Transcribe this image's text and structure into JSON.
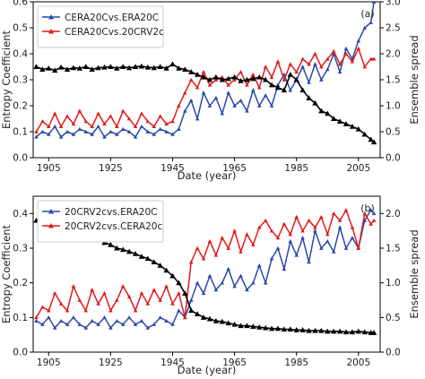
{
  "colors": {
    "blue": "#2b4aa8",
    "red": "#e01b1b",
    "black": "#000000"
  },
  "chart_data": [
    {
      "type": "line",
      "panel_label": "(a)",
      "xlabel": "Date (year)",
      "ylabel": "Entropy Coefficient",
      "y2label": "Ensemble spread",
      "xlim": [
        1900,
        2012
      ],
      "ylim": [
        0,
        0.6
      ],
      "y2lim": [
        0,
        3.0
      ],
      "xticks": [
        "1905",
        "1925",
        "1945",
        "1965",
        "1985",
        "2005"
      ],
      "yticks": [
        "0.0",
        "0.1",
        "0.2",
        "0.3",
        "0.4",
        "0.5",
        "0.6"
      ],
      "y2ticks": [
        "0.0",
        "0.5",
        "1.0",
        "1.5",
        "2.0",
        "2.5",
        "3.0"
      ],
      "legend_position": "upper-left",
      "x": [
        1901,
        1903,
        1905,
        1907,
        1909,
        1911,
        1913,
        1915,
        1917,
        1919,
        1921,
        1923,
        1925,
        1927,
        1929,
        1931,
        1933,
        1935,
        1937,
        1939,
        1941,
        1943,
        1945,
        1947,
        1949,
        1951,
        1953,
        1955,
        1957,
        1959,
        1961,
        1963,
        1965,
        1967,
        1969,
        1971,
        1973,
        1975,
        1977,
        1979,
        1981,
        1983,
        1985,
        1987,
        1989,
        1991,
        1993,
        1995,
        1997,
        1999,
        2001,
        2003,
        2005,
        2007,
        2009,
        2010
      ],
      "series": [
        {
          "name": "CERA20Cvs.ERA20C",
          "color": "blue",
          "axis": "left",
          "values": [
            0.08,
            0.1,
            0.09,
            0.12,
            0.08,
            0.1,
            0.09,
            0.11,
            0.1,
            0.09,
            0.12,
            0.08,
            0.1,
            0.09,
            0.11,
            0.1,
            0.08,
            0.12,
            0.1,
            0.09,
            0.11,
            0.1,
            0.09,
            0.11,
            0.18,
            0.22,
            0.15,
            0.25,
            0.2,
            0.23,
            0.17,
            0.25,
            0.2,
            0.22,
            0.18,
            0.26,
            0.2,
            0.24,
            0.2,
            0.28,
            0.32,
            0.26,
            0.3,
            0.35,
            0.29,
            0.36,
            0.3,
            0.34,
            0.4,
            0.33,
            0.42,
            0.38,
            0.45,
            0.5,
            0.52,
            0.6
          ]
        },
        {
          "name": "CERA20Cvs.20CRV2c",
          "color": "red",
          "axis": "left",
          "values": [
            0.1,
            0.14,
            0.12,
            0.17,
            0.12,
            0.16,
            0.13,
            0.18,
            0.14,
            0.12,
            0.17,
            0.13,
            0.16,
            0.12,
            0.18,
            0.15,
            0.12,
            0.17,
            0.14,
            0.12,
            0.16,
            0.13,
            0.14,
            0.2,
            0.25,
            0.3,
            0.27,
            0.33,
            0.28,
            0.3,
            0.31,
            0.28,
            0.3,
            0.33,
            0.28,
            0.32,
            0.27,
            0.35,
            0.31,
            0.37,
            0.3,
            0.36,
            0.33,
            0.38,
            0.36,
            0.4,
            0.35,
            0.38,
            0.41,
            0.36,
            0.4,
            0.37,
            0.42,
            0.35,
            0.38,
            0.38
          ]
        },
        {
          "name": "",
          "color": "black",
          "axis": "right",
          "values": [
            1.75,
            1.7,
            1.72,
            1.68,
            1.74,
            1.7,
            1.73,
            1.72,
            1.75,
            1.7,
            1.73,
            1.74,
            1.75,
            1.72,
            1.75,
            1.73,
            1.75,
            1.76,
            1.74,
            1.73,
            1.75,
            1.72,
            1.8,
            1.72,
            1.7,
            1.65,
            1.6,
            1.55,
            1.5,
            1.55,
            1.5,
            1.52,
            1.55,
            1.48,
            1.5,
            1.52,
            1.55,
            1.5,
            1.4,
            1.35,
            1.3,
            1.6,
            1.5,
            1.3,
            1.15,
            1.05,
            0.9,
            0.85,
            0.75,
            0.7,
            0.65,
            0.6,
            0.55,
            0.45,
            0.35,
            0.3
          ]
        }
      ]
    },
    {
      "type": "line",
      "panel_label": "(b)",
      "xlabel": "Date (year)",
      "ylabel": "Entropy Coefficient",
      "y2label": "Ensemble spread",
      "xlim": [
        1900,
        2012
      ],
      "ylim": [
        0,
        0.45
      ],
      "y2lim": [
        0,
        2.25
      ],
      "xticks": [
        "1905",
        "1925",
        "1945",
        "1965",
        "1985",
        "2005"
      ],
      "yticks": [
        "0.0",
        "0.1",
        "0.2",
        "0.3",
        "0.4"
      ],
      "y2ticks": [
        "0.0",
        "0.5",
        "1.0",
        "1.5",
        "2.0"
      ],
      "legend_position": "upper-left",
      "x": [
        1901,
        1903,
        1905,
        1907,
        1909,
        1911,
        1913,
        1915,
        1917,
        1919,
        1921,
        1923,
        1925,
        1927,
        1929,
        1931,
        1933,
        1935,
        1937,
        1939,
        1941,
        1943,
        1945,
        1947,
        1949,
        1951,
        1953,
        1955,
        1957,
        1959,
        1961,
        1963,
        1965,
        1967,
        1969,
        1971,
        1973,
        1975,
        1977,
        1979,
        1981,
        1983,
        1985,
        1987,
        1989,
        1991,
        1993,
        1995,
        1997,
        1999,
        2001,
        2003,
        2005,
        2007,
        2009,
        2010
      ],
      "series": [
        {
          "name": "20CRV2cvs.ERA20C",
          "color": "blue",
          "axis": "left",
          "values": [
            0.09,
            0.08,
            0.1,
            0.07,
            0.09,
            0.08,
            0.1,
            0.08,
            0.07,
            0.09,
            0.08,
            0.1,
            0.07,
            0.09,
            0.08,
            0.1,
            0.08,
            0.09,
            0.07,
            0.08,
            0.1,
            0.09,
            0.08,
            0.12,
            0.1,
            0.15,
            0.2,
            0.17,
            0.22,
            0.18,
            0.2,
            0.24,
            0.19,
            0.22,
            0.18,
            0.2,
            0.25,
            0.2,
            0.27,
            0.3,
            0.24,
            0.32,
            0.28,
            0.33,
            0.26,
            0.35,
            0.3,
            0.32,
            0.29,
            0.36,
            0.3,
            0.33,
            0.3,
            0.38,
            0.41,
            0.4
          ]
        },
        {
          "name": "20CRV2cvs.CERA20c",
          "color": "red",
          "axis": "left",
          "values": [
            0.1,
            0.13,
            0.12,
            0.17,
            0.14,
            0.12,
            0.19,
            0.15,
            0.12,
            0.18,
            0.14,
            0.17,
            0.12,
            0.15,
            0.19,
            0.16,
            0.12,
            0.17,
            0.14,
            0.18,
            0.15,
            0.19,
            0.14,
            0.17,
            0.1,
            0.26,
            0.3,
            0.27,
            0.32,
            0.28,
            0.33,
            0.3,
            0.35,
            0.29,
            0.34,
            0.31,
            0.36,
            0.38,
            0.35,
            0.33,
            0.37,
            0.34,
            0.39,
            0.35,
            0.38,
            0.36,
            0.39,
            0.34,
            0.4,
            0.38,
            0.41,
            0.36,
            0.3,
            0.4,
            0.37,
            0.38
          ]
        },
        {
          "name": "",
          "color": "black",
          "axis": "right",
          "values": [
            1.9,
            1.85,
            1.86,
            1.83,
            1.8,
            1.78,
            1.75,
            1.72,
            1.7,
            1.66,
            1.62,
            1.58,
            1.55,
            1.5,
            1.48,
            1.45,
            1.42,
            1.38,
            1.35,
            1.3,
            1.25,
            1.18,
            1.1,
            1.0,
            0.85,
            0.6,
            0.55,
            0.5,
            0.48,
            0.45,
            0.44,
            0.42,
            0.4,
            0.38,
            0.38,
            0.37,
            0.36,
            0.35,
            0.34,
            0.34,
            0.33,
            0.33,
            0.32,
            0.32,
            0.31,
            0.31,
            0.31,
            0.3,
            0.3,
            0.3,
            0.29,
            0.29,
            0.3,
            0.29,
            0.28,
            0.28
          ]
        }
      ]
    }
  ]
}
